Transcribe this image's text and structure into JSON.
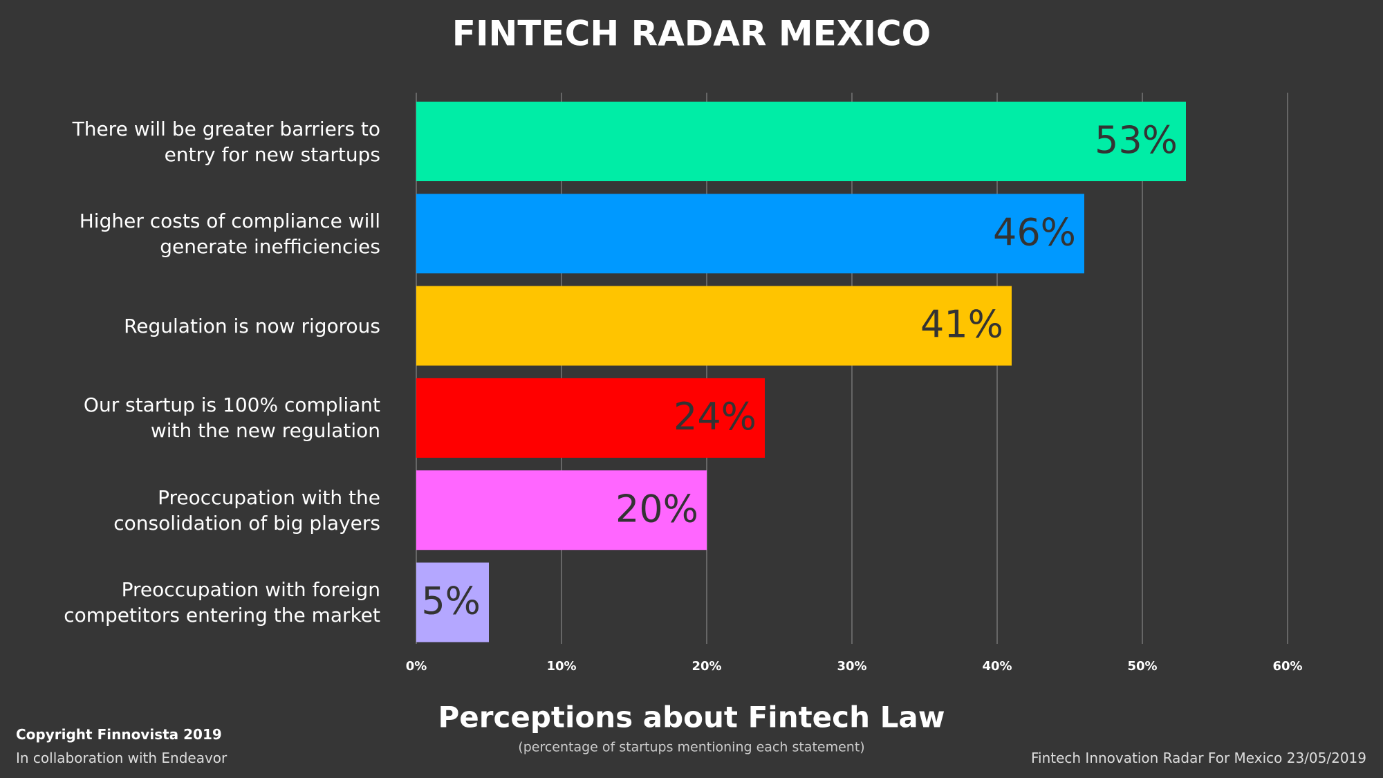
{
  "title": "FINTECH RADAR MEXICO",
  "chart_data": {
    "type": "barh",
    "title": "Perceptions about Fintech Law",
    "subtitle": "(percentage of startups mentioning each statement)",
    "categories": [
      "There will be greater barriers to entry for new startups",
      "Higher costs of compliance will generate inefficiencies",
      "Regulation is now rigorous",
      "Our startup is 100% compliant with the new regulation",
      "Preoccupation with the consolidation of big players",
      "Preoccupation with foreign competitors entering the market"
    ],
    "values": [
      53,
      46,
      41,
      24,
      20,
      5
    ],
    "value_labels": [
      "53%",
      "46%",
      "41%",
      "24%",
      "20%",
      "5%"
    ],
    "colors": [
      "#00eda6",
      "#0099ff",
      "#ffc400",
      "#ff0000",
      "#ff66ff",
      "#b4a7ff"
    ],
    "xlim": [
      0,
      60
    ],
    "xticks": [
      {
        "value": 0,
        "label": "0%"
      },
      {
        "value": 10,
        "label": "10%"
      },
      {
        "value": 20,
        "label": "20%"
      },
      {
        "value": 30,
        "label": "30%"
      },
      {
        "value": 40,
        "label": "40%"
      },
      {
        "value": 50,
        "label": "50%"
      },
      {
        "value": 60,
        "label": "60%"
      }
    ],
    "grid": true
  },
  "footer": {
    "copyright": "Copyright Finnovista 2019",
    "collaboration": "In collaboration with Endeavor",
    "source": "Fintech Innovation Radar For Mexico 23/05/2019"
  }
}
